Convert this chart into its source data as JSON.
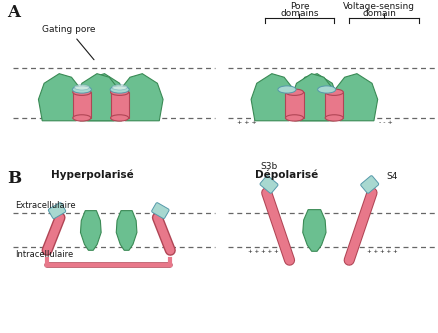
{
  "bg_color": "#ffffff",
  "green": "#6bbf90",
  "green_edge": "#3a8a55",
  "pink": "#e8788a",
  "pink_edge": "#b04555",
  "teal": "#a8d8d0",
  "teal_edge": "#5599aa",
  "white_hl": "#f0f8f0",
  "gray_line": "#777777",
  "text_color": "#1a1a1a",
  "label_A": "A",
  "label_B": "B",
  "label_hyperpol": "Hyperpolarisé",
  "label_depol": "Dépolarisé",
  "label_gating": "Gating pore",
  "label_pore_line1": "Pore",
  "label_pore_line2": "domains",
  "label_vsensor_line1": "Voltage-sensing",
  "label_vsensor_line2": "domain",
  "label_extra": "Extracellulaire",
  "label_intra": "Intracellulaire",
  "label_s3b": "S3b",
  "label_s4": "S4"
}
